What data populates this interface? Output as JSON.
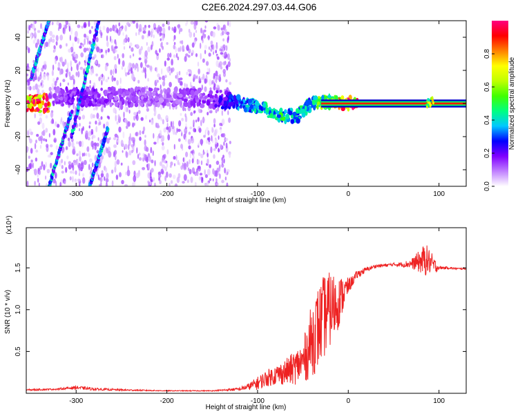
{
  "page_title": "C2E6.2024.297.03.44.G06",
  "chart_data": [
    {
      "type": "heatmap",
      "xlabel": "Height of straight line (km)",
      "ylabel": "Frequency (Hz)",
      "xlim": [
        -355,
        130
      ],
      "ylim": [
        -50,
        50
      ],
      "x_ticks": [
        -300,
        -200,
        -100,
        0,
        100
      ],
      "x_tick_labels": [
        "-300",
        "-200",
        "-100",
        "0",
        "100"
      ],
      "y_ticks": [
        -40,
        -20,
        0,
        20,
        40
      ],
      "y_tick_labels": [
        "-40",
        "-20",
        "0",
        "20",
        "40"
      ],
      "colorbar": {
        "label": "Normalized spectral amplitude",
        "range": [
          0,
          1
        ],
        "ticks": [
          0.0,
          0.2,
          0.4,
          0.6,
          0.8
        ],
        "tick_labels": [
          "0.0",
          "0.2",
          "0.4",
          "0.6",
          "0.8"
        ],
        "colors": [
          "#ffffff",
          "#c080ff",
          "#8000ff",
          "#0000ff",
          "#00c8ff",
          "#00ff80",
          "#40ff00",
          "#c0ff00",
          "#ffff00",
          "#ff8000",
          "#ff0000",
          "#ff0080"
        ]
      },
      "features": {
        "main_track": [
          {
            "x": -330,
            "f": 4,
            "amp": 0.12
          },
          {
            "x": -300,
            "f": 4,
            "amp": 0.18
          },
          {
            "x": -250,
            "f": 4,
            "amp": 0.14
          },
          {
            "x": -200,
            "f": 4,
            "amp": 0.12
          },
          {
            "x": -150,
            "f": 3,
            "amp": 0.16
          },
          {
            "x": -130,
            "f": 2,
            "amp": 0.28
          },
          {
            "x": -110,
            "f": -1,
            "amp": 0.36
          },
          {
            "x": -90,
            "f": -4,
            "amp": 0.42
          },
          {
            "x": -70,
            "f": -8,
            "amp": 0.46
          },
          {
            "x": -55,
            "f": -7,
            "amp": 0.42
          },
          {
            "x": -45,
            "f": -2,
            "amp": 0.4
          },
          {
            "x": -35,
            "f": 1,
            "amp": 0.5
          },
          {
            "x": -20,
            "f": 1,
            "amp": 0.62
          },
          {
            "x": 0,
            "f": 0,
            "amp": 0.88
          },
          {
            "x": 50,
            "f": 0,
            "amp": 0.95
          },
          {
            "x": 130,
            "f": 0,
            "amp": 0.95
          }
        ],
        "diagonal_tracks": [
          {
            "x_start": -350,
            "f_start": 15,
            "x_end": -330,
            "f_end": 50
          },
          {
            "x_start": -305,
            "f_start": -20,
            "x_end": -275,
            "f_end": 50
          },
          {
            "x_start": -330,
            "f_start": -50,
            "x_end": -305,
            "f_end": -5
          },
          {
            "x_start": -285,
            "f_start": -50,
            "x_end": -265,
            "f_end": -15
          }
        ]
      }
    },
    {
      "type": "line",
      "xlabel": "Height of straight line (km)",
      "ylabel": "SNR (10 * v/v)",
      "y_multiplier_label": "(x10⁴)",
      "xlim": [
        -355,
        130
      ],
      "ylim": [
        0,
        1.98
      ],
      "x_ticks": [
        -300,
        -200,
        -100,
        0,
        100
      ],
      "x_tick_labels": [
        "-300",
        "-200",
        "-100",
        "0",
        "100"
      ],
      "y_ticks": [
        0.5,
        1.0,
        1.5
      ],
      "y_tick_labels": [
        "0.5",
        "1.0",
        "1.5"
      ],
      "color": "#ee2222",
      "series": [
        {
          "x": [
            -355,
            -320,
            -300,
            -280,
            -250,
            -200,
            -150,
            -120,
            -110,
            -100,
            -90,
            -80,
            -70,
            -60,
            -50,
            -45,
            -40,
            -35,
            -30,
            -25,
            -20,
            -15,
            -10,
            -5,
            0,
            5,
            10,
            20,
            30,
            40,
            50,
            60,
            70,
            80,
            85,
            90,
            95,
            100,
            110,
            120,
            130
          ],
          "values": [
            0.04,
            0.05,
            0.07,
            0.05,
            0.04,
            0.03,
            0.03,
            0.05,
            0.08,
            0.12,
            0.18,
            0.22,
            0.25,
            0.3,
            0.38,
            0.5,
            0.65,
            0.75,
            0.85,
            0.95,
            1.0,
            1.05,
            1.1,
            1.2,
            1.28,
            1.35,
            1.42,
            1.48,
            1.52,
            1.53,
            1.54,
            1.54,
            1.55,
            1.58,
            1.6,
            1.57,
            1.52,
            1.5,
            1.5,
            1.49,
            1.49
          ],
          "noise": [
            0.01,
            0.01,
            0.02,
            0.015,
            0.01,
            0.005,
            0.005,
            0.02,
            0.04,
            0.08,
            0.1,
            0.12,
            0.15,
            0.2,
            0.25,
            0.35,
            0.45,
            0.5,
            0.5,
            0.5,
            0.45,
            0.4,
            0.3,
            0.2,
            0.1,
            0.06,
            0.05,
            0.03,
            0.02,
            0.02,
            0.02,
            0.03,
            0.06,
            0.15,
            0.2,
            0.15,
            0.1,
            0.02,
            0.015,
            0.01,
            0.01
          ]
        }
      ]
    }
  ]
}
